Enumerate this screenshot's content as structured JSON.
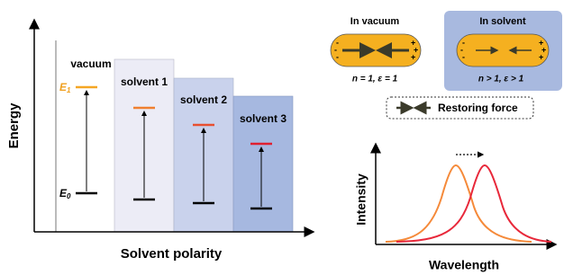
{
  "energy_diagram": {
    "y_axis_label": "Energy",
    "x_axis_label": "Solvent polarity",
    "columns": [
      "vacuum",
      "solvent 1",
      "solvent 2",
      "solvent 3"
    ],
    "upper_level": {
      "symbol": "E",
      "subscript": "1"
    },
    "lower_level": {
      "symbol": "E",
      "subscript": "0"
    }
  },
  "polarization": {
    "vacuum_title": "In vacuum",
    "vacuum_condition": "n = 1, ε = 1",
    "solvent_title": "In solvent",
    "solvent_condition": "n > 1, ε > 1",
    "minus": "-",
    "plus": "+",
    "legend": "Restoring force"
  },
  "spectrum": {
    "y_axis_label": "Intensity",
    "x_axis_label": "Wavelength"
  }
}
